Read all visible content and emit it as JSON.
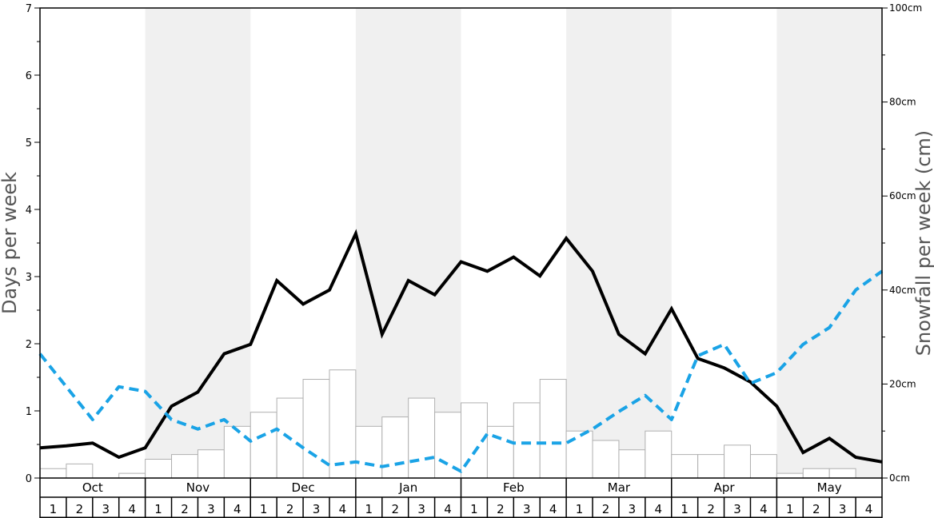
{
  "chart_data": {
    "type": "bar",
    "ylabel_left": "Days per week",
    "ylabel_right": "Snowfall per week (cm)",
    "ylim_left": [
      0,
      7
    ],
    "ylim_right": [
      0,
      100
    ],
    "left_ticks": [
      "0",
      "1",
      "2",
      "3",
      "4",
      "5",
      "6",
      "7"
    ],
    "right_ticks": [
      "0cm",
      "20cm",
      "40cm",
      "60cm",
      "80cm",
      "100cm"
    ],
    "months": [
      "Oct",
      "Nov",
      "Dec",
      "Jan",
      "Feb",
      "Mar",
      "Apr",
      "May"
    ],
    "weeks": [
      "1",
      "2",
      "3",
      "4"
    ],
    "colors": {
      "band": "#f0f0f0",
      "bar_fill": "#ffffff",
      "bar_stroke": "#b0b0b0",
      "solid_line": "#000000",
      "dashed_line": "#1aa3e6"
    },
    "snowfall_bars_cm": [
      2,
      3,
      0,
      1,
      4,
      5,
      6,
      11,
      14,
      17,
      21,
      23,
      11,
      13,
      17,
      14,
      16,
      11,
      16,
      21,
      10,
      8,
      6,
      10,
      5,
      5,
      7,
      5,
      1,
      2,
      2,
      0
    ],
    "series": [
      {
        "style": "solid",
        "axis": "left",
        "values": [
          0.45,
          0.48,
          0.52,
          0.31,
          0.45,
          1.07,
          1.28,
          1.85,
          1.99,
          2.94,
          2.59,
          2.8,
          3.64,
          2.14,
          2.94,
          2.73,
          3.22,
          3.08,
          3.29,
          3.01,
          3.57,
          3.08,
          2.14,
          1.85,
          2.52,
          1.78,
          1.64,
          1.43,
          1.07,
          0.38,
          0.59,
          0.31,
          0.24
        ]
      },
      {
        "style": "dashed",
        "axis": "left",
        "values": [
          1.85,
          1.36,
          0.87,
          1.36,
          1.29,
          0.87,
          0.73,
          0.87,
          0.55,
          0.73,
          0.45,
          0.19,
          0.24,
          0.17,
          0.24,
          0.31,
          0.1,
          0.66,
          0.52,
          0.52,
          0.52,
          0.73,
          0.99,
          1.23,
          0.87,
          1.82,
          1.99,
          1.41,
          1.57,
          1.99,
          2.24,
          2.8,
          3.08
        ]
      }
    ]
  }
}
